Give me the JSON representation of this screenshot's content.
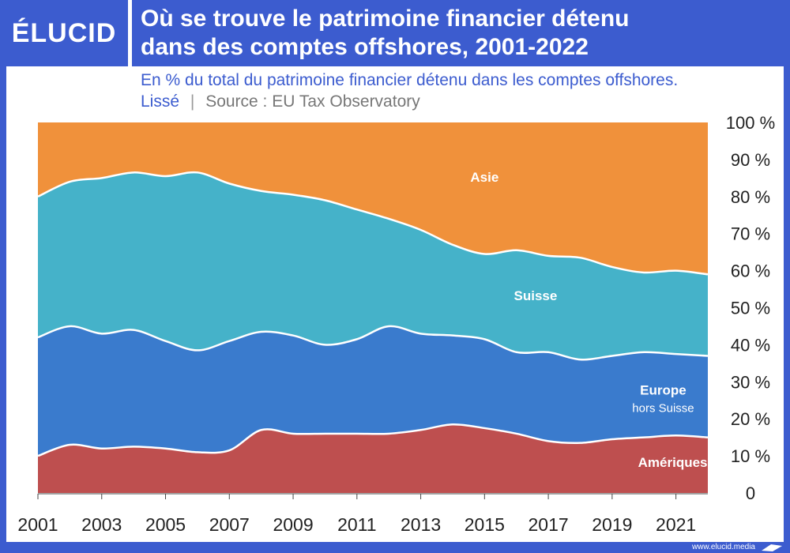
{
  "header": {
    "logo": "ÉLUCID",
    "title_line1": "Où se trouve le patrimoine financier détenu",
    "title_line2": "dans des comptes offshores, 2001-2022"
  },
  "subtitle": "En % du total du patrimoine financier détenu dans les comptes offshores.",
  "note": {
    "smoothed": "Lissé",
    "separator": "|",
    "source": "Source : EU Tax Observatory"
  },
  "footer": {
    "url": "www.elucid.media"
  },
  "colors": {
    "brand": "#3c5ccf",
    "ameriques": "#be4f4f",
    "europe": "#3a7bcd",
    "suisse": "#45b2c9",
    "asie": "#f0913b"
  },
  "chart_data": {
    "type": "area",
    "stacked": true,
    "x": [
      2001,
      2002,
      2003,
      2004,
      2005,
      2006,
      2007,
      2008,
      2009,
      2010,
      2011,
      2012,
      2013,
      2014,
      2015,
      2016,
      2017,
      2018,
      2019,
      2020,
      2021,
      2022
    ],
    "series": [
      {
        "name": "Amériques",
        "color": "#be4f4f",
        "values": [
          10,
          13,
          12,
          12.5,
          12,
          11,
          11.5,
          17,
          16,
          16,
          16,
          16,
          17,
          18.5,
          17.5,
          16,
          14,
          13.5,
          14.5,
          15,
          15.5,
          15
        ]
      },
      {
        "name": "Europe",
        "sublabel": "hors Suisse",
        "color": "#3a7bcd",
        "values": [
          32,
          32,
          31,
          31.5,
          29,
          27.5,
          29.5,
          26.5,
          26.5,
          24,
          25.5,
          29,
          26,
          24,
          24,
          22,
          24,
          22.5,
          22.5,
          23,
          22,
          22
        ]
      },
      {
        "name": "Suisse",
        "color": "#45b2c9",
        "values": [
          38,
          39,
          42,
          42.5,
          44.5,
          48,
          42.5,
          38,
          38,
          39,
          35,
          29,
          28,
          24.5,
          23,
          27.5,
          26,
          27.5,
          24,
          21.5,
          22.5,
          22
        ]
      },
      {
        "name": "Asie",
        "color": "#f0913b",
        "values": [
          20,
          16,
          15,
          13.5,
          14.5,
          13.5,
          16.5,
          18.5,
          19.5,
          21,
          23.5,
          26,
          29,
          33,
          35.5,
          34.5,
          36,
          36.5,
          39,
          40.5,
          40,
          41
        ]
      }
    ],
    "ylim": [
      0,
      100
    ],
    "yticks": [
      "0",
      "10 %",
      "20 %",
      "30 %",
      "40 %",
      "50 %",
      "60 %",
      "70 %",
      "80 %",
      "90 %",
      "100 %"
    ],
    "xticks": [
      "2001",
      "2003",
      "2005",
      "2007",
      "2009",
      "2011",
      "2013",
      "2015",
      "2017",
      "2019",
      "2021"
    ],
    "xlim": [
      2001,
      2022
    ]
  }
}
